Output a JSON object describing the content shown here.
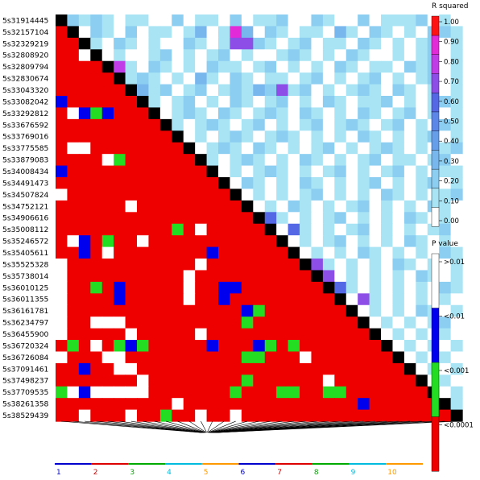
{
  "chart_data": {
    "type": "heatmap",
    "description_kind": "linkage-disequilibrium-matrix",
    "markers": [
      "5s31914445",
      "5s32157104",
      "5s32329219",
      "5s32808920",
      "5s32809794",
      "5s32830674",
      "5s33043320",
      "5s33082042",
      "5s33292812",
      "5s33676592",
      "5s33769016",
      "5s33775585",
      "5s33879083",
      "5s34008434",
      "5s34491473",
      "5s34507824",
      "5s34752121",
      "5s34906616",
      "5s35008112",
      "5s35246572",
      "5s35405611",
      "5s35525328",
      "5s35738014",
      "5s36010125",
      "5s36011355",
      "5s36161781",
      "5s36234797",
      "5s36455900",
      "5s36720324",
      "5s36726084",
      "5s37091461",
      "5s37498237",
      "5s37709535",
      "5s38261358",
      "5s38529439"
    ],
    "upper_triangle": {
      "metric": "R squared",
      "legend_title": "R squared",
      "legend_ticks": [
        "1.00",
        "0.90",
        "0.80",
        "0.70",
        "0.60",
        "0.50",
        "0.40",
        "0.30",
        "0.20",
        "0.10",
        "0.00"
      ],
      "colors": [
        "#ffffff",
        "#a8e4f4",
        "#8ccef2",
        "#78b6ee",
        "#669eea",
        "#5c86e8",
        "#5468e6",
        "#8c4ee6",
        "#c03ce6",
        "#e22ad8",
        "#ff1212"
      ],
      "color_bins": [
        "0.00-0.10",
        "0.10-0.20",
        "0.20-0.30",
        "0.30-0.40",
        "0.40-0.50",
        "0.50-0.60",
        "0.60-0.70",
        "0.70-0.80",
        "0.80-0.90",
        "0.90-1.00",
        ">=1.00"
      ],
      "cells": {
        "0": [
          2,
          1,
          2,
          1,
          0,
          1,
          1,
          0,
          0,
          2,
          0,
          1,
          1,
          0,
          2,
          0,
          1,
          1,
          2,
          0,
          0,
          2,
          1,
          0,
          0,
          2,
          0,
          1,
          1,
          1,
          2,
          0,
          1,
          0
        ],
        "1": [
          0,
          2,
          1,
          0,
          2,
          0,
          1,
          1,
          0,
          1,
          3,
          0,
          1,
          9,
          3,
          0,
          2,
          1,
          0,
          1,
          1,
          0,
          3,
          1,
          0,
          2,
          1,
          0,
          1,
          0,
          2,
          2,
          1
        ],
        "2": [
          1,
          0,
          2,
          1,
          0,
          1,
          0,
          0,
          2,
          1,
          0,
          1,
          7,
          7,
          2,
          1,
          0,
          1,
          2,
          0,
          1,
          1,
          0,
          2,
          1,
          0,
          1,
          0,
          1,
          2,
          0,
          1
        ],
        "3": [
          0,
          1,
          0,
          0,
          1,
          2,
          0,
          1,
          0,
          1,
          2,
          0,
          1,
          0,
          0,
          1,
          2,
          1,
          0,
          1,
          0,
          2,
          1,
          0,
          0,
          1,
          0,
          1,
          2,
          0,
          1
        ],
        "4": [
          8,
          1,
          0,
          2,
          1,
          0,
          1,
          0,
          2,
          1,
          1,
          0,
          1,
          2,
          0,
          1,
          0,
          1,
          0,
          2,
          1,
          0,
          1,
          1,
          0,
          2,
          1,
          2,
          0,
          1
        ],
        "5": [
          1,
          2,
          1,
          0,
          1,
          0,
          3,
          1,
          0,
          2,
          1,
          0,
          1,
          1,
          0,
          1,
          2,
          0,
          1,
          0,
          1,
          2,
          0,
          1,
          0,
          1,
          2,
          0,
          1
        ],
        "6": [
          3,
          1,
          2,
          0,
          1,
          2,
          0,
          1,
          2,
          1,
          3,
          2,
          7,
          1,
          2,
          0,
          1,
          0,
          1,
          2,
          1,
          0,
          2,
          1,
          0,
          1,
          0,
          1
        ],
        "7": [
          1,
          0,
          1,
          2,
          0,
          1,
          0,
          2,
          1,
          0,
          1,
          2,
          0,
          1,
          0,
          2,
          1,
          0,
          1,
          1,
          2,
          0,
          1,
          0,
          1,
          2,
          1
        ],
        "8": [
          0,
          1,
          2,
          1,
          0,
          2,
          1,
          0,
          1,
          2,
          1,
          0,
          2,
          1,
          0,
          1,
          0,
          2,
          1,
          0,
          1,
          2,
          0,
          1,
          0,
          1
        ],
        "9": [
          1,
          0,
          1,
          2,
          1,
          0,
          1,
          2,
          0,
          1,
          0,
          1,
          2,
          0,
          1,
          2,
          1,
          0,
          1,
          2,
          0,
          1,
          0,
          2,
          1
        ],
        "10": [
          0,
          1,
          0,
          1,
          2,
          1,
          0,
          1,
          2,
          1,
          0,
          1,
          0,
          1,
          0,
          2,
          1,
          0,
          1,
          0,
          1,
          2,
          0,
          1
        ],
        "11": [
          0,
          1,
          2,
          1,
          0,
          2,
          1,
          0,
          1,
          0,
          1,
          2,
          0,
          1,
          0,
          1,
          2,
          1,
          0,
          1,
          0,
          1,
          2
        ],
        "12": [
          1,
          0,
          1,
          2,
          1,
          0,
          1,
          0,
          2,
          1,
          0,
          1,
          0,
          1,
          2,
          0,
          1,
          1,
          0,
          1,
          2,
          0
        ],
        "13": [
          0,
          1,
          0,
          1,
          2,
          1,
          0,
          1,
          0,
          1,
          2,
          0,
          1,
          0,
          1,
          2,
          0,
          1,
          0,
          1,
          1
        ],
        "14": [
          0,
          2,
          1,
          0,
          1,
          0,
          2,
          1,
          0,
          1,
          0,
          1,
          2,
          0,
          1,
          0,
          1,
          2,
          0,
          1
        ],
        "15": [
          0,
          1,
          0,
          1,
          0,
          1,
          2,
          0,
          1,
          0,
          1,
          0,
          2,
          1,
          0,
          1,
          0,
          1,
          2
        ],
        "16": [
          0,
          1,
          0,
          2,
          1,
          0,
          1,
          0,
          1,
          2,
          0,
          1,
          0,
          1,
          0,
          2,
          1,
          0
        ],
        "17": [
          6,
          1,
          0,
          1,
          0,
          1,
          2,
          0,
          1,
          0,
          1,
          0,
          2,
          1,
          0,
          1,
          0
        ],
        "18": [
          0,
          6,
          1,
          0,
          1,
          0,
          1,
          2,
          0,
          1,
          0,
          1,
          0,
          1,
          2,
          0
        ],
        "19": [
          0,
          1,
          0,
          1,
          2,
          0,
          1,
          0,
          1,
          0,
          2,
          1,
          0,
          1,
          0
        ],
        "20": [
          0,
          1,
          0,
          1,
          0,
          2,
          1,
          0,
          1,
          0,
          1,
          0,
          2,
          1
        ],
        "21": [
          7,
          1,
          0,
          1,
          0,
          1,
          0,
          2,
          1,
          0,
          1,
          0,
          1
        ],
        "22": [
          7,
          0,
          1,
          0,
          1,
          0,
          1,
          0,
          2,
          1,
          0,
          1
        ],
        "23": [
          6,
          1,
          0,
          1,
          0,
          1,
          0,
          1,
          0,
          2,
          1
        ],
        "24": [
          0,
          7,
          1,
          0,
          1,
          0,
          1,
          0,
          1,
          0
        ],
        "25": [
          0,
          1,
          0,
          1,
          0,
          2,
          1,
          0,
          1
        ],
        "26": [
          0,
          1,
          0,
          1,
          0,
          1,
          2,
          0
        ],
        "27": [
          0,
          1,
          0,
          1,
          0,
          1,
          0
        ],
        "28": [
          0,
          1,
          0,
          1,
          0,
          1
        ],
        "29": [
          0,
          1,
          0,
          1,
          0
        ],
        "30": [
          0,
          1,
          0,
          1
        ],
        "31": [
          0,
          1,
          0
        ],
        "32": [
          0,
          1
        ],
        "33": [
          1
        ]
      }
    },
    "lower_triangle": {
      "metric": "P value",
      "legend_title": "P value",
      "legend_ticks": [
        ">0.01",
        "<0.01",
        "<0.001",
        "<0.0001"
      ],
      "colors": [
        "#ffffff",
        "#0000ee",
        "#22dd22",
        "#ee0000"
      ],
      "default_category": 3,
      "overrides": {
        "3": [
          [
            2,
            0
          ]
        ],
        "7": [
          [
            0,
            1
          ]
        ],
        "8": [
          [
            1,
            0
          ],
          [
            2,
            1
          ],
          [
            3,
            2
          ],
          [
            4,
            1
          ]
        ],
        "11": [
          [
            1,
            0
          ],
          [
            2,
            0
          ]
        ],
        "12": [
          [
            4,
            0
          ],
          [
            5,
            2
          ]
        ],
        "13": [
          [
            0,
            1
          ]
        ],
        "15": [
          [
            0,
            0
          ]
        ],
        "16": [
          [
            6,
            0
          ]
        ],
        "18": [
          [
            10,
            2
          ],
          [
            12,
            0
          ]
        ],
        "19": [
          [
            1,
            0
          ],
          [
            2,
            1
          ],
          [
            4,
            2
          ],
          [
            7,
            0
          ]
        ],
        "20": [
          [
            2,
            1
          ],
          [
            4,
            0
          ],
          [
            13,
            1
          ]
        ],
        "21": [
          [
            0,
            0
          ],
          [
            12,
            0
          ]
        ],
        "22": [
          [
            0,
            0
          ],
          [
            11,
            0
          ]
        ],
        "23": [
          [
            0,
            0
          ],
          [
            3,
            2
          ],
          [
            5,
            1
          ],
          [
            11,
            0
          ],
          [
            14,
            1
          ],
          [
            15,
            1
          ]
        ],
        "24": [
          [
            0,
            0
          ],
          [
            5,
            1
          ],
          [
            11,
            0
          ],
          [
            14,
            1
          ]
        ],
        "25": [
          [
            0,
            0
          ],
          [
            16,
            1
          ],
          [
            17,
            2
          ]
        ],
        "26": [
          [
            0,
            0
          ],
          [
            3,
            0
          ],
          [
            4,
            0
          ],
          [
            5,
            0
          ],
          [
            16,
            2
          ]
        ],
        "27": [
          [
            0,
            0
          ],
          [
            6,
            0
          ],
          [
            12,
            0
          ]
        ],
        "28": [
          [
            1,
            2
          ],
          [
            3,
            0
          ],
          [
            5,
            2
          ],
          [
            6,
            1
          ],
          [
            7,
            2
          ],
          [
            13,
            1
          ],
          [
            17,
            1
          ],
          [
            18,
            2
          ],
          [
            20,
            2
          ]
        ],
        "29": [
          [
            0,
            0
          ],
          [
            4,
            0
          ],
          [
            5,
            0
          ],
          [
            16,
            2
          ],
          [
            17,
            2
          ],
          [
            21,
            0
          ]
        ],
        "30": [
          [
            2,
            1
          ],
          [
            5,
            0
          ],
          [
            6,
            0
          ]
        ],
        "31": [
          [
            7,
            0
          ],
          [
            16,
            2
          ],
          [
            23,
            0
          ]
        ],
        "32": [
          [
            0,
            2
          ],
          [
            1,
            0
          ],
          [
            2,
            1
          ],
          [
            3,
            0
          ],
          [
            4,
            0
          ],
          [
            5,
            0
          ],
          [
            6,
            0
          ],
          [
            7,
            0
          ],
          [
            15,
            2
          ],
          [
            19,
            2
          ],
          [
            20,
            2
          ],
          [
            23,
            2
          ],
          [
            24,
            2
          ]
        ],
        "33": [
          [
            10,
            0
          ],
          [
            26,
            1
          ]
        ],
        "34": [
          [
            2,
            0
          ],
          [
            6,
            0
          ],
          [
            9,
            2
          ],
          [
            12,
            0
          ],
          [
            15,
            0
          ]
        ]
      }
    },
    "diagonal_color": "#000000",
    "position_axis": {
      "ticks": [
        "1",
        "2",
        "3",
        "4",
        "5",
        "6",
        "7",
        "8",
        "9",
        "10"
      ],
      "tick_colors": [
        "#0000cc",
        "#dd0000",
        "#00aa00",
        "#00bbdd",
        "#ff9900",
        "#0000cc",
        "#dd0000",
        "#00aa00",
        "#00bbdd",
        "#ff9900"
      ]
    }
  }
}
